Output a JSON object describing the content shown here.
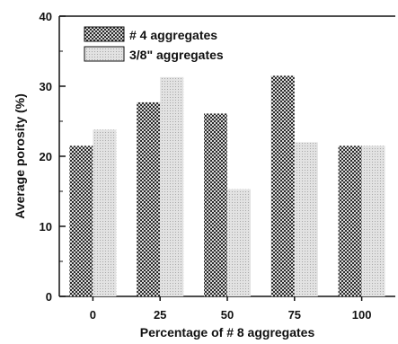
{
  "chart_data": {
    "type": "bar",
    "title": "",
    "xlabel": "Percentage of # 8 aggregates",
    "ylabel": "Average porosity (%)",
    "categories": [
      "0",
      "25",
      "50",
      "75",
      "100"
    ],
    "ylim": [
      0,
      40
    ],
    "yticks": [
      "0",
      "10",
      "20",
      "30",
      "40"
    ],
    "grid": false,
    "legend_position": "top-left",
    "series": [
      {
        "name": "# 4 aggregates",
        "values": [
          21.5,
          27.7,
          26.1,
          31.5,
          21.5
        ],
        "pattern": "dark-checker"
      },
      {
        "name": "3/8\" aggregates",
        "values": [
          23.8,
          31.3,
          15.3,
          22.0,
          21.5
        ],
        "pattern": "light-dots"
      }
    ],
    "colors": {
      "axis": "#111111",
      "dark_fill": "#3a3a3a",
      "light_fill": "#cfcfcf"
    }
  }
}
